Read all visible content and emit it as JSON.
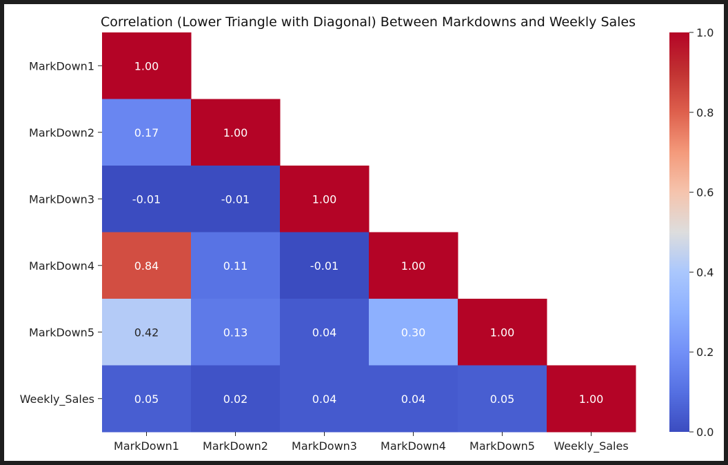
{
  "chart_data": {
    "type": "heatmap",
    "title": "Correlation (Lower Triangle with Diagonal) Between Markdowns and Weekly Sales",
    "xlabel": "",
    "ylabel": "",
    "rows": [
      "MarkDown1",
      "MarkDown2",
      "MarkDown3",
      "MarkDown4",
      "MarkDown5",
      "Weekly_Sales"
    ],
    "columns": [
      "MarkDown1",
      "MarkDown2",
      "MarkDown3",
      "MarkDown4",
      "MarkDown5",
      "Weekly_Sales"
    ],
    "values": [
      [
        1.0,
        null,
        null,
        null,
        null,
        null
      ],
      [
        0.17,
        1.0,
        null,
        null,
        null,
        null
      ],
      [
        -0.01,
        -0.01,
        1.0,
        null,
        null,
        null
      ],
      [
        0.84,
        0.11,
        -0.01,
        1.0,
        null,
        null
      ],
      [
        0.42,
        0.13,
        0.04,
        0.3,
        1.0,
        null
      ],
      [
        0.05,
        0.02,
        0.04,
        0.04,
        0.05,
        1.0
      ]
    ],
    "value_labels": [
      [
        "1.00",
        null,
        null,
        null,
        null,
        null
      ],
      [
        "0.17",
        "1.00",
        null,
        null,
        null,
        null
      ],
      [
        "-0.01",
        "-0.01",
        "1.00",
        null,
        null,
        null
      ],
      [
        "0.84",
        "0.11",
        "-0.01",
        "1.00",
        null,
        null
      ],
      [
        "0.42",
        "0.13",
        "0.04",
        "0.30",
        "1.00",
        null
      ],
      [
        "0.05",
        "0.02",
        "0.04",
        "0.04",
        "0.05",
        "1.00"
      ]
    ],
    "colormap": "coolwarm",
    "colorbar": {
      "range": [
        0.0,
        1.0
      ],
      "ticks": [
        0.0,
        0.2,
        0.4,
        0.6,
        0.8,
        1.0
      ],
      "tick_labels": [
        "0.0",
        "0.2",
        "0.4",
        "0.6",
        "0.8",
        "1.0"
      ]
    },
    "grid": false
  }
}
